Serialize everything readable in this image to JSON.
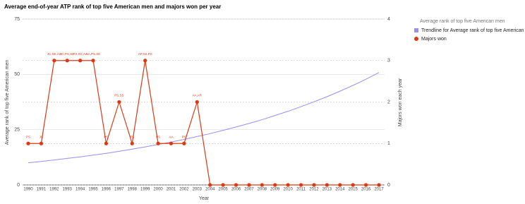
{
  "chart_data": {
    "type": "line",
    "title": "Average end-of-year ATP rank of top five American men and majors won per year",
    "x_label": "Year",
    "y_label": "Average rank of top five American men",
    "y2_label": "Majors won each year",
    "legend_header": "Average rank of top five American men",
    "legend": "right",
    "grid": true,
    "categories": [
      "1990",
      "1991",
      "1992",
      "1993",
      "1994",
      "1995",
      "1996",
      "1997",
      "1998",
      "1999",
      "2000",
      "2001",
      "2002",
      "2003",
      "2004",
      "2005",
      "2006",
      "2007",
      "2008",
      "2009",
      "2010",
      "2011",
      "2012",
      "2013",
      "2014",
      "2015",
      "2016",
      "2017"
    ],
    "ylim": [
      0,
      75
    ],
    "yticks": [
      0,
      25,
      50,
      75
    ],
    "y2lim": [
      0,
      4
    ],
    "y2ticks": [
      0,
      1,
      2,
      3,
      4
    ],
    "series": [
      {
        "name": "Trendline for Average rank of top five American men",
        "color": "#9b8cf0",
        "axis": "y",
        "values": [
          10.0,
          10.6,
          11.3,
          12.0,
          12.7,
          13.5,
          14.3,
          15.2,
          16.2,
          17.2,
          18.3,
          19.4,
          20.6,
          21.9,
          23.2,
          24.7,
          26.2,
          27.8,
          29.5,
          31.4,
          33.3,
          35.4,
          37.6,
          39.9,
          42.4,
          45.0,
          47.8,
          50.8
        ]
      },
      {
        "name": "Majors won",
        "color": "#dc3912",
        "axis": "y2",
        "values": [
          1,
          1,
          3,
          3,
          3,
          3,
          1,
          2,
          1,
          3,
          1,
          1,
          1,
          2,
          0,
          0,
          0,
          0,
          0,
          0,
          0,
          0,
          0,
          0,
          0,
          0,
          0,
          0
        ],
        "value_labels": [
          "PS",
          "JC",
          "JC,SE,AA",
          "JC,PS,SC",
          "PS,SC,AA",
          "AA,PS,SE",
          "PS",
          "PS,SS",
          "PS",
          "AP,SS,PS",
          "PS",
          "AA",
          "PS",
          "AA,AR",
          null,
          null,
          null,
          null,
          null,
          null,
          null,
          null,
          null,
          null,
          null,
          null,
          null,
          null
        ]
      }
    ]
  }
}
